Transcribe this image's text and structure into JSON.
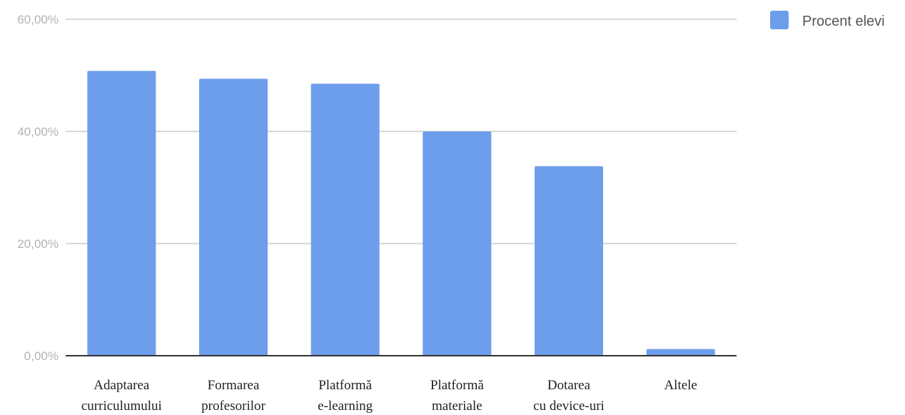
{
  "chart_data": {
    "type": "bar",
    "categories": [
      [
        "Adaptarea",
        "curriculumului"
      ],
      [
        "Formarea",
        "profesorilor"
      ],
      [
        "Platformă",
        "e-learning"
      ],
      [
        "Platformă",
        "materiale"
      ],
      [
        "Dotarea",
        "cu device-uri"
      ],
      [
        "Altele"
      ]
    ],
    "series": [
      {
        "name": "Procent elevi",
        "values": [
          50.8,
          49.4,
          48.5,
          40.0,
          33.8,
          1.2
        ],
        "color": "#6d9eeb"
      }
    ],
    "ylim": [
      0,
      60
    ],
    "yticks": [
      0,
      20,
      40,
      60
    ],
    "ytick_labels": [
      "0,00%",
      "20,00%",
      "40,00%",
      "60,00%"
    ],
    "grid": true,
    "legend_position": "top-right",
    "title": "",
    "xlabel": "",
    "ylabel": ""
  }
}
